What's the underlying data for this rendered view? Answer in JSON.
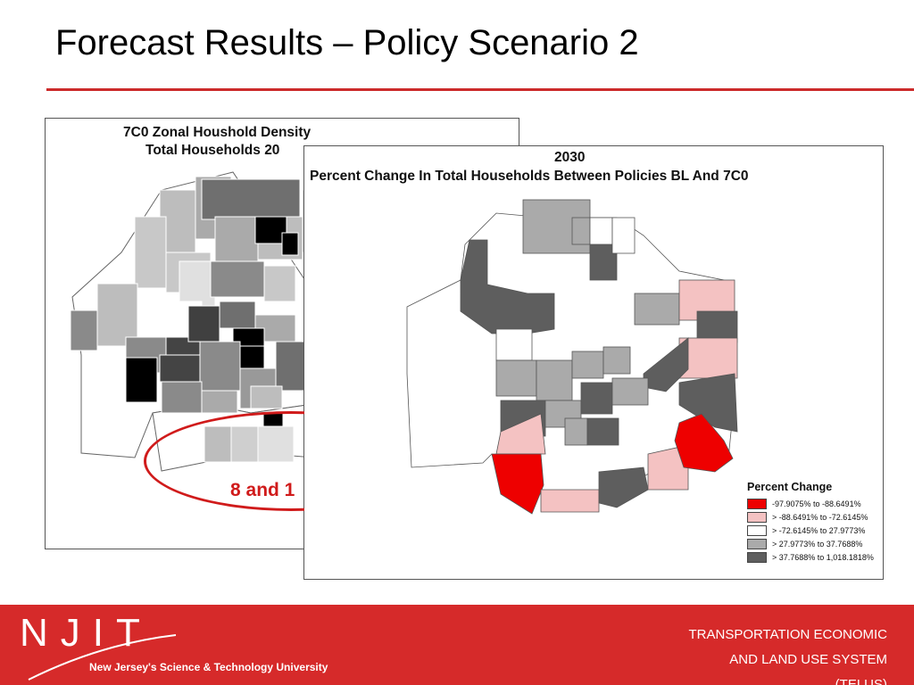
{
  "slide": {
    "title": "Forecast Results – Policy Scenario 2"
  },
  "map_left": {
    "title_line1": "7C0 Zonal Houshold Density",
    "title_line2": "Total Households 20"
  },
  "annotation": {
    "text": "8 and 1"
  },
  "map_right": {
    "title_line1": "2030",
    "title_line2": "Percent Change In Total Households Between Policies BL And 7C0"
  },
  "legend": {
    "title": "Percent Change",
    "items": [
      {
        "label": "-97.9075% to -88.6491%",
        "color": "#ee0000"
      },
      {
        "label": "> -88.6491% to -72.6145%",
        "color": "#f4c2c2"
      },
      {
        "label": "> -72.6145% to 27.9773%",
        "color": "#ffffff"
      },
      {
        "label": "> 27.9773% to 37.7688%",
        "color": "#aaaaaa"
      },
      {
        "label": "> 37.7688% to 1,018.1818%",
        "color": "#5e5e5e"
      }
    ]
  },
  "footer": {
    "logo_text": "NJIT",
    "tagline": "New Jersey's Science & Technology University",
    "org_line1": "TRANSPORTATION ECONOMIC",
    "org_line2": "AND LAND USE SYSTEM",
    "org_line3": "(TELUS)"
  },
  "colors": {
    "accent": "#d62a2a",
    "rule": "#cc2b2b"
  }
}
